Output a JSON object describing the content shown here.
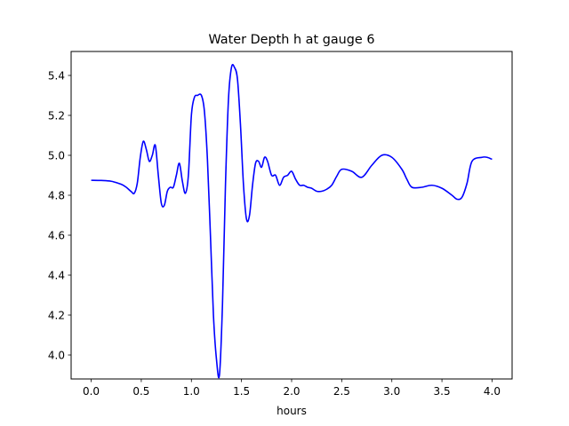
{
  "chart_data": {
    "type": "line",
    "title": "Water Depth h at gauge 6",
    "xlabel": "hours",
    "ylabel": "",
    "xlim": [
      -0.2,
      4.2
    ],
    "ylim": [
      3.88,
      5.52
    ],
    "grid": false,
    "legend": "none",
    "xticks": [
      0.0,
      0.5,
      1.0,
      1.5,
      2.0,
      2.5,
      3.0,
      3.5,
      4.0
    ],
    "xtick_labels": [
      "0.0",
      "0.5",
      "1.0",
      "1.5",
      "2.0",
      "2.5",
      "3.0",
      "3.5",
      "4.0"
    ],
    "yticks": [
      4.0,
      4.2,
      4.4,
      4.6,
      4.8,
      5.0,
      5.2,
      5.4
    ],
    "ytick_labels": [
      "4.0",
      "4.2",
      "4.4",
      "4.6",
      "4.8",
      "5.0",
      "5.2",
      "5.4"
    ],
    "series": [
      {
        "color": "#0000ff",
        "x": [
          0.0,
          0.1,
          0.2,
          0.3,
          0.35,
          0.4,
          0.43,
          0.46,
          0.49,
          0.52,
          0.55,
          0.58,
          0.61,
          0.64,
          0.67,
          0.7,
          0.73,
          0.76,
          0.79,
          0.82,
          0.85,
          0.88,
          0.91,
          0.94,
          0.97,
          1.0,
          1.03,
          1.06,
          1.1,
          1.13,
          1.16,
          1.19,
          1.22,
          1.25,
          1.28,
          1.31,
          1.34,
          1.37,
          1.4,
          1.43,
          1.46,
          1.49,
          1.52,
          1.55,
          1.58,
          1.61,
          1.64,
          1.67,
          1.7,
          1.73,
          1.76,
          1.8,
          1.84,
          1.88,
          1.92,
          1.96,
          2.0,
          2.04,
          2.08,
          2.12,
          2.16,
          2.2,
          2.25,
          2.3,
          2.35,
          2.4,
          2.45,
          2.5,
          2.6,
          2.7,
          2.8,
          2.9,
          3.0,
          3.1,
          3.15,
          3.2,
          3.3,
          3.4,
          3.5,
          3.6,
          3.65,
          3.7,
          3.75,
          3.8,
          3.9,
          3.95,
          4.0
        ],
        "values": [
          4.875,
          4.874,
          4.87,
          4.855,
          4.84,
          4.818,
          4.81,
          4.86,
          4.99,
          5.07,
          5.03,
          4.97,
          5.0,
          5.05,
          4.9,
          4.76,
          4.75,
          4.82,
          4.84,
          4.84,
          4.9,
          4.96,
          4.87,
          4.81,
          4.9,
          5.2,
          5.29,
          5.3,
          5.3,
          5.22,
          4.98,
          4.6,
          4.2,
          3.98,
          3.9,
          4.25,
          4.85,
          5.28,
          5.44,
          5.44,
          5.38,
          5.15,
          4.85,
          4.68,
          4.7,
          4.85,
          4.96,
          4.97,
          4.94,
          4.99,
          4.97,
          4.9,
          4.9,
          4.85,
          4.89,
          4.9,
          4.92,
          4.88,
          4.85,
          4.85,
          4.84,
          4.835,
          4.82,
          4.82,
          4.83,
          4.85,
          4.895,
          4.93,
          4.92,
          4.89,
          4.95,
          5.0,
          4.99,
          4.93,
          4.88,
          4.84,
          4.84,
          4.85,
          4.835,
          4.8,
          4.78,
          4.79,
          4.86,
          4.97,
          4.99,
          4.99,
          4.98
        ]
      }
    ]
  }
}
